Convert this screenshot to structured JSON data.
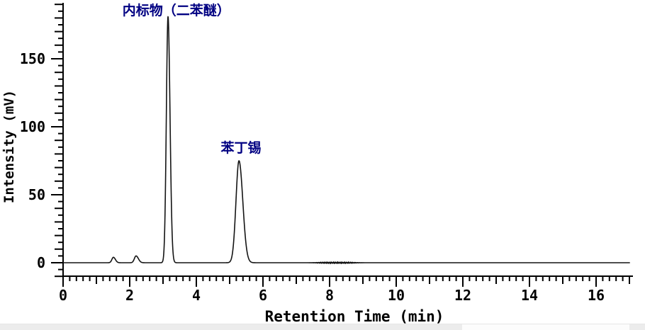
{
  "figure": {
    "background_color": "#ffffff",
    "trace_color": "#141414",
    "axis_color": "#000000",
    "annotation_color": "#000082"
  },
  "chart_data": {
    "type": "line",
    "title": "",
    "xlabel": "Retention Time (min)",
    "ylabel": "Intensity (mV)",
    "xlim": [
      0,
      17.1
    ],
    "ylim": [
      -11,
      191
    ],
    "grid": false,
    "legend": "none",
    "x_major_ticks": [
      0,
      2,
      4,
      6,
      8,
      10,
      12,
      14,
      16
    ],
    "x_medium_step_min": 1.0,
    "x_minor_step_min": 0.2,
    "y_major_ticks": [
      0,
      50,
      100,
      150
    ],
    "y_medium_step_mV": 10,
    "y_minor_step_mV": 5,
    "baseline_mV": 0,
    "peaks": [
      {
        "name": "baseline-bump-1",
        "retention_min": 1.51,
        "height_mV": 4,
        "sigma_left_min": 0.045,
        "sigma_right_min": 0.06,
        "label": ""
      },
      {
        "name": "baseline-bump-2",
        "retention_min": 2.19,
        "height_mV": 5,
        "sigma_left_min": 0.05,
        "sigma_right_min": 0.07,
        "label": ""
      },
      {
        "name": "internal-standard",
        "retention_min": 3.15,
        "height_mV": 181,
        "sigma_left_min": 0.05,
        "sigma_right_min": 0.06,
        "label": "内标物（二苯醚）"
      },
      {
        "name": "fenbutatin-peak",
        "retention_min": 5.28,
        "height_mV": 75,
        "sigma_left_min": 0.09,
        "sigma_right_min": 0.115,
        "label": "苯丁锡"
      }
    ],
    "noise_band": {
      "center_min": 8.2,
      "half_width_min": 0.6,
      "amplitude_mV": 0.7
    },
    "annotations": [
      {
        "name": "internal-standard-label",
        "text": "内标物（二苯醚）",
        "x_min": 3.4,
        "y_mV": 186
      },
      {
        "name": "fenbutatin-label",
        "text": "苯丁锡",
        "x_min": 5.34,
        "y_mV": 85
      }
    ]
  }
}
